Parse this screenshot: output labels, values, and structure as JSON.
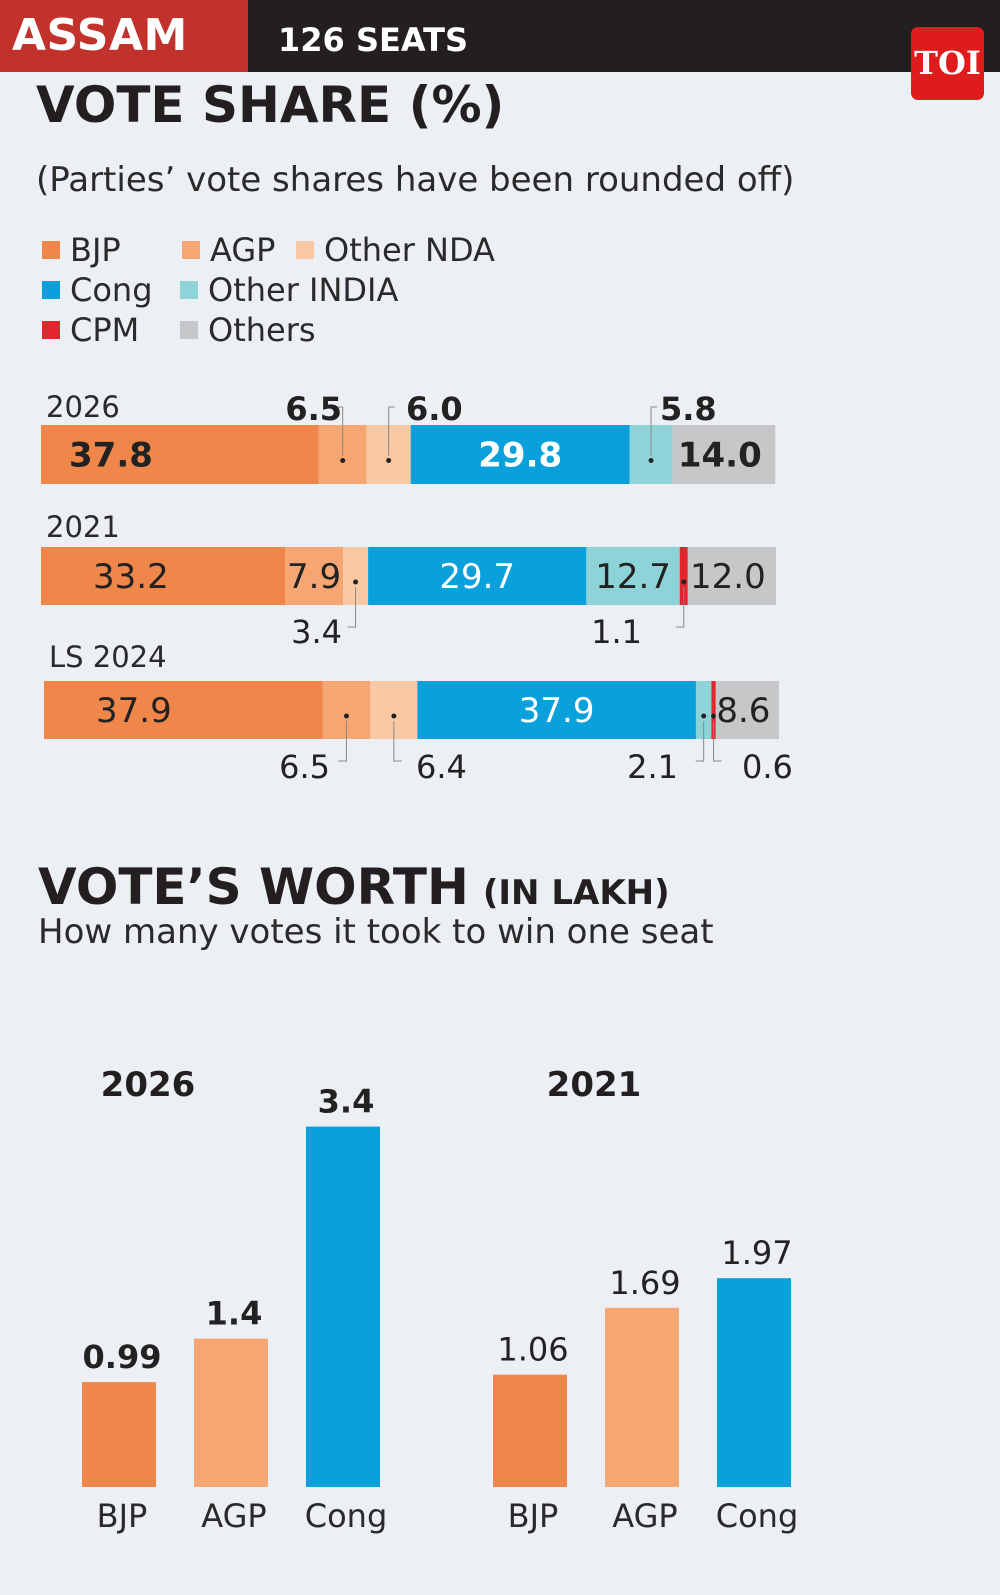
{
  "header": {
    "state": "ASSAM",
    "seats": "126 SEATS",
    "logo": "TOI"
  },
  "colors": {
    "BJP": "#f0874a",
    "AGP": "#f6a672",
    "Other NDA": "#f9c9a4",
    "Cong": "#0aa0dc",
    "Other INDIA": "#8dd3d8",
    "CPM": "#e3262e",
    "Others": "#c6c7c9"
  },
  "section1": {
    "title": "VOTE SHARE (%)",
    "subtitle": "(Parties’ vote shares have been rounded off)"
  },
  "legend": [
    "BJP",
    "AGP",
    "Other NDA",
    "Cong",
    "Other INDIA",
    "CPM",
    "Others"
  ],
  "section2": {
    "title": "VOTE’S WORTH",
    "unit": "(IN LAKH)",
    "subtitle": "How many votes it took to win one seat"
  },
  "chart_data": [
    {
      "type": "bar",
      "orientation": "horizontal-stacked",
      "title": "VOTE SHARE (%)",
      "categories": [
        "2026",
        "2021",
        "LS 2024"
      ],
      "series": [
        {
          "name": "BJP",
          "values": [
            37.8,
            33.2,
            37.9
          ],
          "labels": [
            "37.8",
            "33.2",
            "37.9"
          ]
        },
        {
          "name": "AGP",
          "values": [
            6.5,
            7.9,
            6.5
          ],
          "labels": [
            "6.5",
            "7.9",
            "6.5"
          ]
        },
        {
          "name": "Other NDA",
          "values": [
            6.0,
            3.4,
            6.4
          ],
          "labels": [
            "6.0",
            "3.4",
            "6.4"
          ]
        },
        {
          "name": "Cong",
          "values": [
            29.8,
            29.7,
            37.9
          ],
          "labels": [
            "29.8",
            "29.7",
            "37.9"
          ]
        },
        {
          "name": "Other INDIA",
          "values": [
            5.8,
            12.7,
            2.1
          ],
          "labels": [
            "5.8",
            "12.7",
            "2.1"
          ]
        },
        {
          "name": "CPM",
          "values": [
            0,
            1.1,
            0.6
          ],
          "labels": [
            "",
            "1.1",
            "0.6"
          ]
        },
        {
          "name": "Others",
          "values": [
            14.0,
            12.0,
            8.6
          ],
          "labels": [
            "14.0",
            "12.0",
            "8.6"
          ]
        }
      ]
    },
    {
      "type": "bar",
      "title": "VOTE’S WORTH",
      "group": "2026",
      "categories": [
        "BJP",
        "AGP",
        "Cong"
      ],
      "values": [
        0.99,
        1.4,
        3.4
      ],
      "labels": [
        "0.99",
        "1.4",
        "3.4"
      ]
    },
    {
      "type": "bar",
      "title": "VOTE’S WORTH",
      "group": "2021",
      "categories": [
        "BJP",
        "AGP",
        "Cong"
      ],
      "values": [
        1.06,
        1.69,
        1.97
      ],
      "labels": [
        "1.06",
        "1.69",
        "1.97"
      ]
    }
  ]
}
